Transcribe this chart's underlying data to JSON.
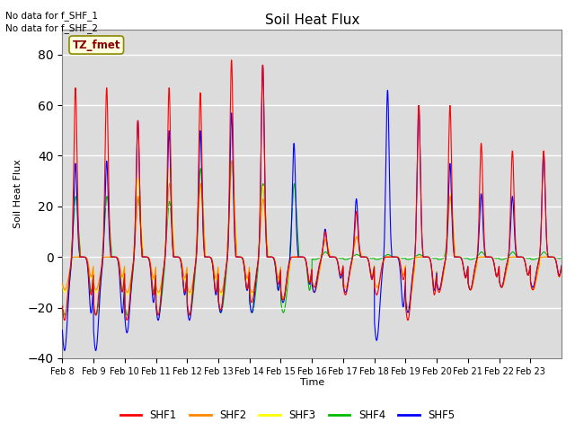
{
  "title": "Soil Heat Flux",
  "ylabel": "Soil Heat Flux",
  "xlabel": "Time",
  "ylim": [
    -40,
    90
  ],
  "yticks": [
    -40,
    -20,
    0,
    20,
    40,
    60,
    80
  ],
  "note1": "No data for f_SHF_1",
  "note2": "No data for f_SHF_2",
  "station_label": "TZ_fmet",
  "legend_entries": [
    "SHF1",
    "SHF2",
    "SHF3",
    "SHF4",
    "SHF5"
  ],
  "legend_colors": [
    "#ff0000",
    "#ff8800",
    "#ffff00",
    "#00bb00",
    "#0000ff"
  ],
  "background_color": "#dcdcdc",
  "date_labels": [
    "Feb 8",
    "Feb 9",
    "Feb 10",
    "Feb 11",
    "Feb 12",
    "Feb 13",
    "Feb 14",
    "Feb 15",
    "Feb 16",
    "Feb 17",
    "Feb 18",
    "Feb 19",
    "Feb 20",
    "Feb 21",
    "Feb 22",
    "Feb 23"
  ],
  "n_days": 16,
  "figsize": [
    6.4,
    4.8
  ],
  "dpi": 100,
  "shf1_peaks": [
    67,
    67,
    54,
    67,
    65,
    78,
    76,
    0,
    10,
    18,
    0,
    60,
    60,
    45,
    42,
    42
  ],
  "shf2_peaks": [
    0,
    0,
    24,
    29,
    29,
    38,
    23,
    0,
    7,
    8,
    0,
    0,
    24,
    0,
    0,
    0
  ],
  "shf3_peaks": [
    0,
    0,
    31,
    35,
    28,
    38,
    28,
    0,
    7,
    8,
    0,
    0,
    25,
    0,
    0,
    0
  ],
  "shf4_peaks": [
    24,
    24,
    23,
    22,
    35,
    38,
    29,
    29,
    2,
    1,
    1,
    1,
    24,
    2,
    2,
    2
  ],
  "shf5_peaks": [
    37,
    38,
    54,
    50,
    50,
    57,
    76,
    45,
    11,
    23,
    66,
    60,
    37,
    25,
    24,
    41
  ],
  "shf1_troughs": [
    -25,
    -23,
    -25,
    -23,
    -23,
    -21,
    -18,
    -17,
    -12,
    -15,
    -15,
    -25,
    -14,
    -13,
    -12,
    -13
  ],
  "shf2_troughs": [
    -13,
    -13,
    -14,
    -14,
    -14,
    -14,
    -14,
    -16,
    -14,
    -12,
    -12,
    -20,
    -13,
    -13,
    -12,
    -13
  ],
  "shf3_troughs": [
    -14,
    -14,
    -15,
    -15,
    -15,
    -15,
    -15,
    -17,
    -14,
    -12,
    -12,
    -21,
    -13,
    -13,
    -12,
    -13
  ],
  "shf4_troughs": [
    -23,
    -23,
    -23,
    -23,
    -23,
    -22,
    -22,
    -22,
    -1,
    -1,
    -1,
    -1,
    -1,
    -1,
    -1,
    -1
  ],
  "shf5_troughs": [
    -37,
    -37,
    -30,
    -25,
    -25,
    -22,
    -22,
    -18,
    -14,
    -14,
    -33,
    -22,
    -13,
    -13,
    -12,
    -12
  ]
}
